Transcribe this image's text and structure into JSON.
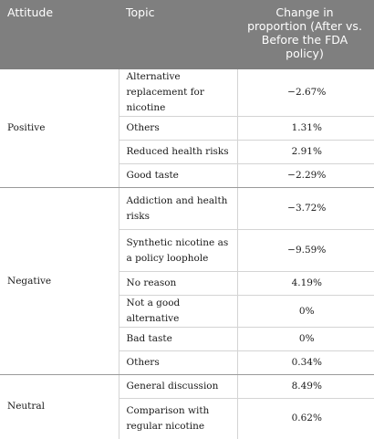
{
  "header": {
    "attitude": "Attitude",
    "topic": "Topic",
    "change": "Change in proportion (After vs. Before the FDA policy)"
  },
  "groups": [
    {
      "attitude": "Positive",
      "rows": [
        {
          "topic": "Alternative replacement for nicotine",
          "change": "−2.67%"
        },
        {
          "topic": "Others",
          "change": "1.31%"
        },
        {
          "topic": "Reduced health risks",
          "change": "2.91%"
        },
        {
          "topic": "Good taste",
          "change": "−2.29%"
        }
      ]
    },
    {
      "attitude": "Negative",
      "rows": [
        {
          "topic": "Addiction and health risks",
          "change": "−3.72%"
        },
        {
          "topic": "Synthetic nicotine as a policy loophole",
          "change": "−9.59%"
        },
        {
          "topic": "No reason",
          "change": "4.19%"
        },
        {
          "topic": "Not a good alternative",
          "change": "0%"
        },
        {
          "topic": "Bad taste",
          "change": "0%"
        },
        {
          "topic": "Others",
          "change": "0.34%"
        }
      ]
    },
    {
      "attitude": "Neutral",
      "rows": [
        {
          "topic": "General discussion",
          "change": "8.49%"
        },
        {
          "topic": "Comparison with regular nicotine",
          "change": "0.62%"
        }
      ]
    }
  ]
}
